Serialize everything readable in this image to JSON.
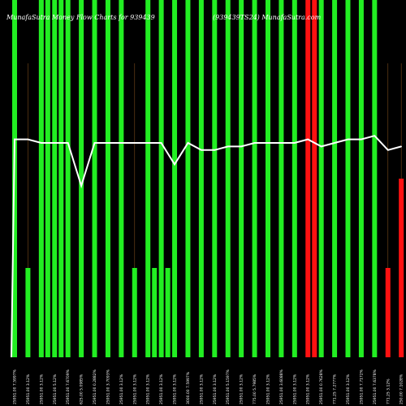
{
  "chart_data": {
    "type": "bar",
    "title": "MunafaSutra Money Flow Charts for 939439",
    "subtitle": "(939439TS24) MunafaSutra.com",
    "colors": {
      "background": "#000000",
      "up": "#22ee22",
      "down": "#ff1111",
      "line": "#ffffff",
      "grid": "#7a4a1a"
    },
    "categories": [
      "25951.00 7.5997%",
      "25951.00 3.12%",
      "25951.00 3.12%",
      "25951.00 5.12%",
      "25951.00 7.6709%",
      "625.00 5.0985%",
      "25951.00 0.2882%",
      "25951.00 3.7093%",
      "25951.00 3.12%",
      "25951.00 3.12%",
      "25951.00 3.12%",
      "25951.00 3.12%",
      "25951.00 3.12%",
      "3000.00 7.5997%",
      "25951.00 3.12%",
      "25951.00 3.12%",
      "25951.00 5.1597%",
      "25951.00 3.12%",
      "775.00 5.7985%",
      "25951.00 3.12%",
      "25951.00 3.6088%",
      "25951.00 3.12%",
      "25951.00 3.12%",
      "25951.00 0.7628%",
      "771.25 7.2777%",
      "25951.00 3.12%",
      "25951.00 7.7172%",
      "25951.00 7.6378%",
      "771.25 3.12%",
      "250.00 7.1028%"
    ],
    "series": [
      {
        "values": [
          100,
          25,
          100,
          100,
          100,
          100,
          100,
          100,
          100,
          25,
          100,
          100,
          100,
          100,
          100,
          100,
          100,
          100,
          100,
          100,
          100,
          100,
          100,
          100,
          100,
          100,
          100,
          100,
          25,
          50
        ],
        "secondary_values": [
          null,
          null,
          100,
          100,
          null,
          null,
          null,
          null,
          null,
          null,
          25,
          25,
          null,
          null,
          null,
          null,
          null,
          null,
          null,
          null,
          null,
          null,
          100,
          null,
          null,
          null,
          null,
          null,
          null,
          null
        ],
        "directions": [
          "up",
          "up",
          "up",
          "up",
          "up",
          "up",
          "up",
          "up",
          "up",
          "up",
          "up",
          "up",
          "up",
          "up",
          "up",
          "up",
          "up",
          "up",
          "up",
          "up",
          "up",
          "up",
          "down",
          "up",
          "up",
          "up",
          "up",
          "up",
          "down",
          "down"
        ]
      },
      {
        "values": [
          61,
          61,
          60,
          60,
          60,
          48,
          60,
          60,
          60,
          60,
          60,
          60,
          54,
          60,
          58,
          58,
          59,
          59,
          60,
          60,
          60,
          60,
          61,
          59,
          60,
          61,
          61,
          62,
          58,
          59
        ]
      }
    ],
    "ylim": [
      0,
      100
    ],
    "grid": true
  }
}
